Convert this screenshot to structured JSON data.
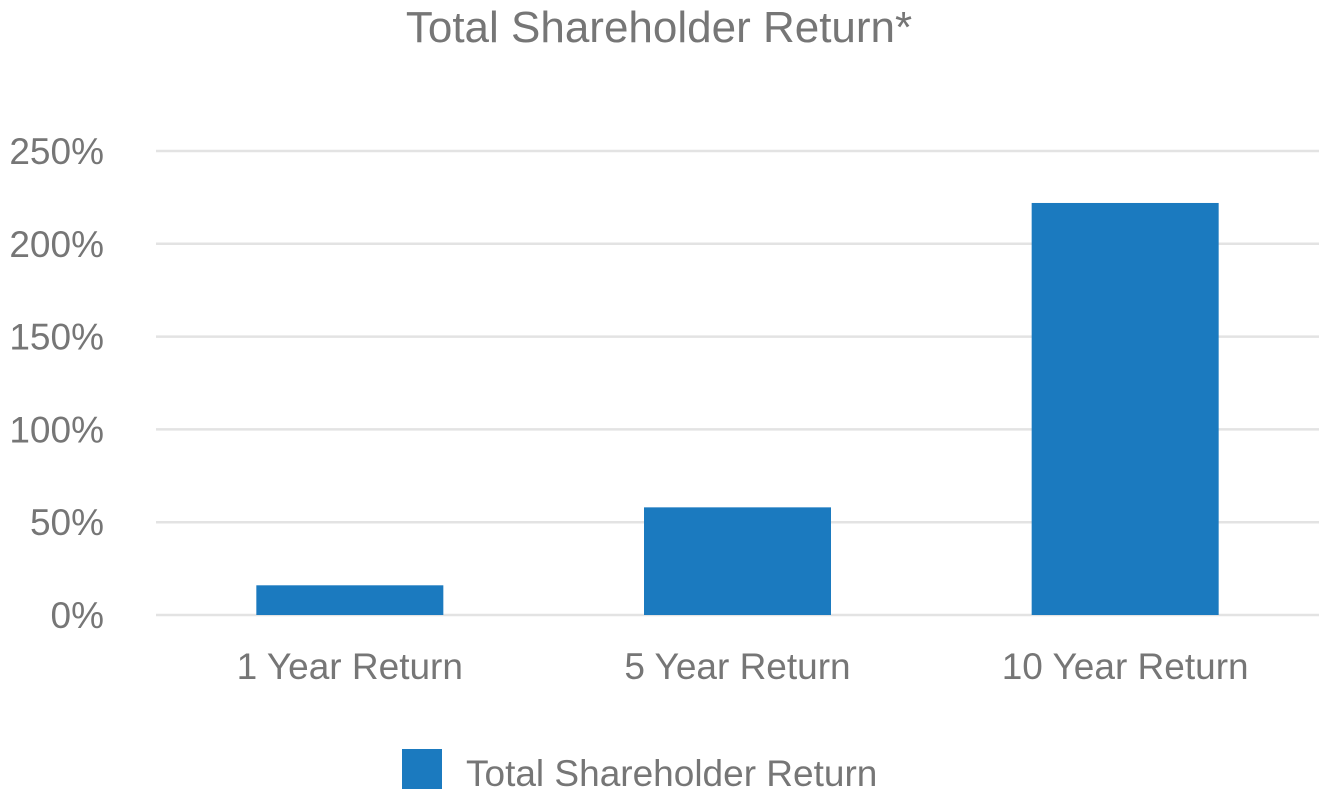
{
  "chart_data": {
    "type": "bar",
    "title": "Total Shareholder Return*",
    "xlabel": "",
    "ylabel": "",
    "categories": [
      "1 Year Return",
      "5 Year Return",
      "10 Year Return"
    ],
    "series": [
      {
        "name": "Total Shareholder Return",
        "values": [
          16,
          58,
          222
        ],
        "color": "#1b7abf"
      }
    ],
    "ylim": [
      0,
      250
    ],
    "yticks": [
      0,
      50,
      100,
      150,
      200,
      250
    ],
    "ytick_labels": [
      "0%",
      "50%",
      "100%",
      "150%",
      "200%",
      "250%"
    ],
    "grid": true,
    "legend_position": "bottom"
  }
}
